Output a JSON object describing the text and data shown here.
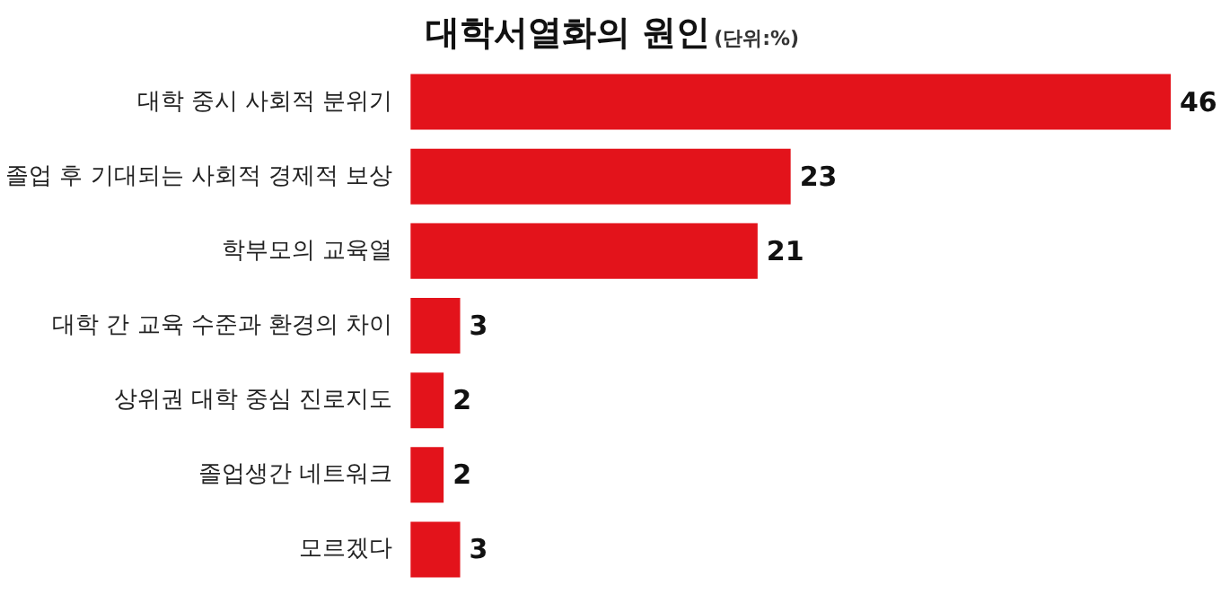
{
  "chart_data": {
    "type": "bar",
    "orientation": "horizontal",
    "title": "대학서열화의 원인",
    "subtitle": "(단위:%)",
    "categories": [
      "대학 중시 사회적 분위기",
      "졸업 후 기대되는 사회적 경제적 보상",
      "학부모의 교육열",
      "대학 간 교육 수준과 환경의 차이",
      "상위권 대학 중심 진로지도",
      "졸업생간 네트워크",
      "모르겠다"
    ],
    "values": [
      46,
      23,
      21,
      3,
      2,
      2,
      3
    ],
    "color": "#e3131b",
    "data_labels": true
  }
}
